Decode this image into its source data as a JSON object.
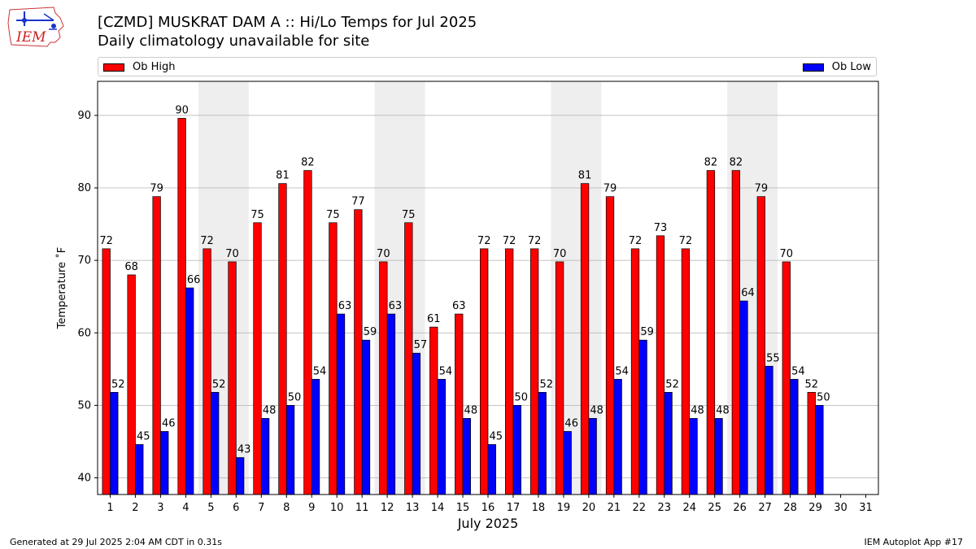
{
  "header": {
    "title_line1": "[CZMD] MUSKRAT DAM  A :: Hi/Lo Temps for Jul 2025",
    "title_line2": "Daily climatology unavailable for site",
    "logo_text": "IEM"
  },
  "footer": {
    "generated": "Generated at 29 Jul 2025 2:04 AM CDT in 0.31s",
    "app": "IEM Autoplot App #17"
  },
  "colors": {
    "high": "#ff0000",
    "low": "#0000ff",
    "weekend_band": "#eeeeee",
    "grid": "#b0b0b0"
  },
  "chart_data": {
    "type": "bar",
    "title": "[CZMD] MUSKRAT DAM  A :: Hi/Lo Temps for Jul 2025",
    "subtitle": "Daily climatology unavailable for site",
    "xlabel": "July 2025",
    "ylabel": "Temperature ˚F",
    "ylim": [
      37.7,
      94.7
    ],
    "yticks": [
      40,
      50,
      60,
      70,
      80,
      90
    ],
    "grid": "horizontal",
    "legend_placement": "top",
    "categories": [
      "1",
      "2",
      "3",
      "4",
      "5",
      "6",
      "7",
      "8",
      "9",
      "10",
      "11",
      "12",
      "13",
      "14",
      "15",
      "16",
      "17",
      "18",
      "19",
      "20",
      "21",
      "22",
      "23",
      "24",
      "25",
      "26",
      "27",
      "28",
      "29",
      "30",
      "31"
    ],
    "shaded_days": [
      5,
      6,
      12,
      13,
      19,
      20,
      26,
      27
    ],
    "series": [
      {
        "name": "Ob High",
        "color": "#ff0000",
        "values": [
          72,
          68,
          79,
          90,
          72,
          70,
          75,
          81,
          82,
          75,
          77,
          70,
          75,
          61,
          63,
          72,
          72,
          72,
          70,
          81,
          79,
          72,
          73,
          72,
          82,
          82,
          79,
          70,
          52,
          null,
          null
        ],
        "bar_heights": [
          71.6,
          68.0,
          78.8,
          89.6,
          71.6,
          69.8,
          75.2,
          80.6,
          82.4,
          75.2,
          77.0,
          69.8,
          75.2,
          60.8,
          62.6,
          71.6,
          71.6,
          71.6,
          69.8,
          80.6,
          78.8,
          71.6,
          73.4,
          71.6,
          82.4,
          82.4,
          78.8,
          69.8,
          51.8,
          null,
          null
        ]
      },
      {
        "name": "Ob Low",
        "color": "#0000ff",
        "values": [
          52,
          45,
          46,
          66,
          52,
          43,
          48,
          50,
          54,
          63,
          59,
          63,
          57,
          54,
          48,
          45,
          50,
          52,
          46,
          48,
          54,
          59,
          52,
          48,
          48,
          64,
          55,
          54,
          50,
          null,
          null
        ],
        "bar_heights": [
          51.8,
          44.6,
          46.4,
          66.2,
          51.8,
          42.8,
          48.2,
          50.0,
          53.6,
          62.6,
          59.0,
          62.6,
          57.2,
          53.6,
          48.2,
          44.6,
          50.0,
          51.8,
          46.4,
          48.2,
          53.6,
          59.0,
          51.8,
          48.2,
          48.2,
          64.4,
          55.4,
          53.6,
          50.0,
          null,
          null
        ]
      }
    ]
  }
}
